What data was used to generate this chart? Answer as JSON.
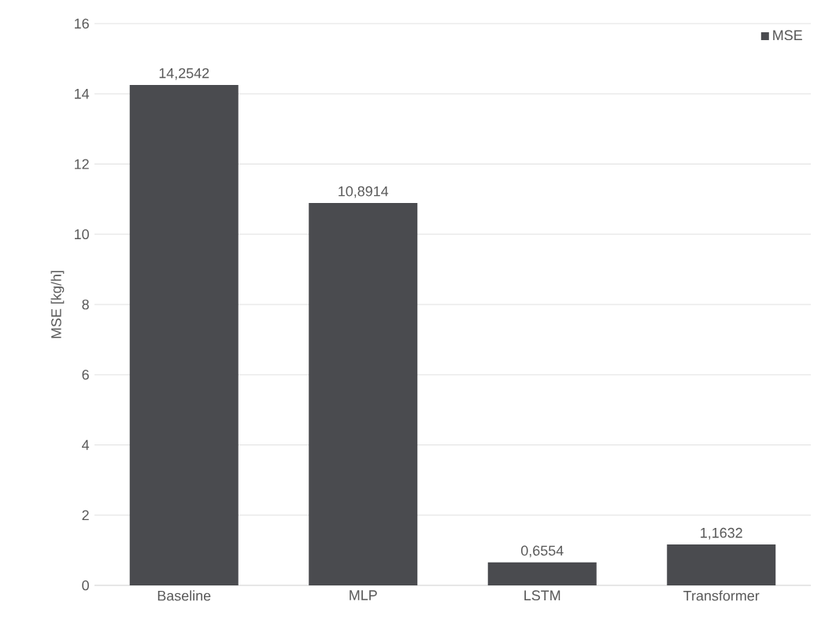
{
  "chart_data": {
    "type": "bar",
    "ylabel": "MSE [kg/h]",
    "categories": [
      "Baseline",
      "MLP",
      "LSTM",
      "Transformer"
    ],
    "series": [
      {
        "name": "MSE",
        "color": "#4a4b4f",
        "values": [
          14.2542,
          10.8914,
          0.6554,
          1.1632
        ],
        "value_labels": [
          "14,2542",
          "10,8914",
          "0,6554",
          "1,1632"
        ]
      }
    ],
    "ylim": [
      0,
      16
    ],
    "yticks": [
      0,
      2,
      4,
      6,
      8,
      10,
      12,
      14,
      16
    ],
    "grid": "y",
    "legend": "top right"
  }
}
